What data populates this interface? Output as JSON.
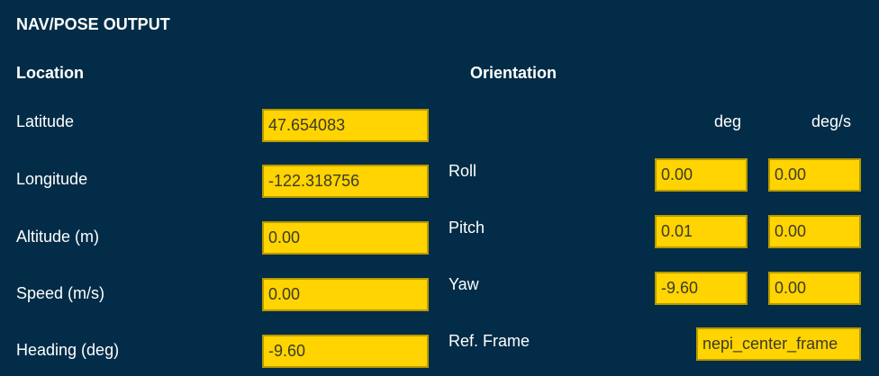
{
  "title": "NAV/POSE OUTPUT",
  "location": {
    "heading": "Location",
    "fields": [
      {
        "label": "Latitude",
        "value": "47.654083"
      },
      {
        "label": "Longitude",
        "value": "-122.318756"
      },
      {
        "label": "Altitude (m)",
        "value": "0.00"
      },
      {
        "label": "Speed (m/s)",
        "value": "0.00"
      },
      {
        "label": "Heading (deg)",
        "value": "-9.60"
      }
    ]
  },
  "orientation": {
    "heading": "Orientation",
    "col_deg": "deg",
    "col_degs": "deg/s",
    "rows": [
      {
        "label": "Roll",
        "deg": "0.00",
        "rate": "0.00"
      },
      {
        "label": "Pitch",
        "deg": "0.01",
        "rate": "0.00"
      },
      {
        "label": "Yaw",
        "deg": "-9.60",
        "rate": "0.00"
      }
    ],
    "ref_frame_label": "Ref. Frame",
    "ref_frame_value": "nepi_center_frame"
  },
  "colors": {
    "background": "#022c47",
    "field": "#ffd400"
  }
}
